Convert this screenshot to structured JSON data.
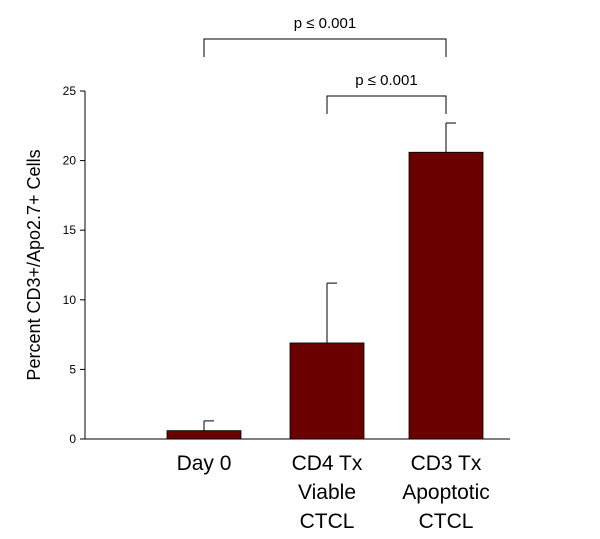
{
  "chart_data": {
    "type": "bar",
    "categories": [
      [
        "Day 0"
      ],
      [
        "CD4 Tx",
        "Viable",
        "CTCL"
      ],
      [
        "CD3 Tx",
        "Apoptotic",
        "CTCL"
      ]
    ],
    "values": [
      0.6,
      6.9,
      20.6
    ],
    "error_upper": [
      1.3,
      11.2,
      22.7
    ],
    "title": "",
    "xlabel": "",
    "ylabel": "Percent CD3+/Apo2.7+ Cells",
    "ylim": [
      0,
      25
    ],
    "yticks": [
      0,
      5,
      10,
      15,
      20,
      25
    ],
    "grid": false,
    "legend": "none",
    "bar_color": "#6b0000",
    "significance": [
      {
        "from": 0,
        "to": 2,
        "label": "p ≤ 0.001"
      },
      {
        "from": 1,
        "to": 2,
        "label": "p ≤ 0.001"
      }
    ]
  }
}
